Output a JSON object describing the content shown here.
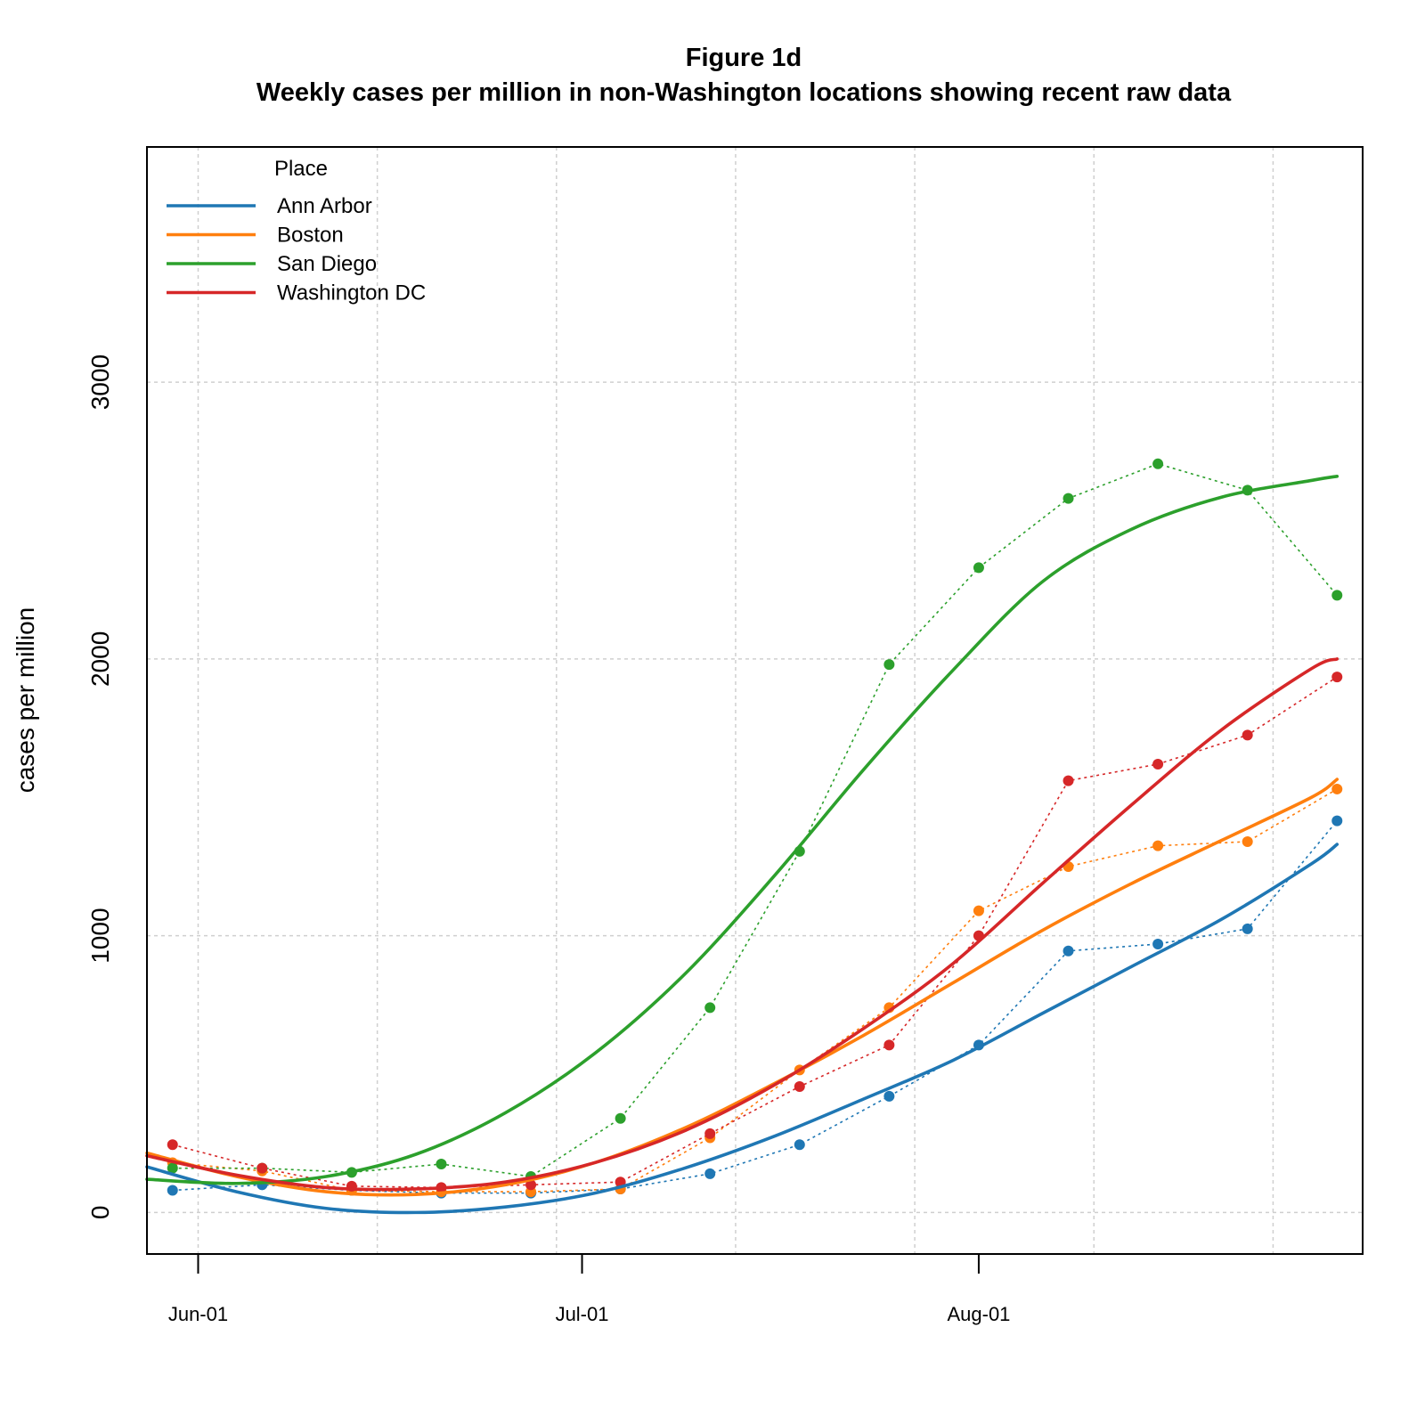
{
  "chart_data": {
    "type": "line",
    "title": "Figure 1d",
    "subtitle": "Weekly cases per million in non-Washington locations showing recent raw data",
    "xlabel": "",
    "ylabel": "cases per million",
    "x_type": "date",
    "xlim": [
      "2020-05-28",
      "2020-08-31"
    ],
    "ylim": [
      -150,
      3850
    ],
    "x_ticks": [
      {
        "date": "2020-06-01",
        "label": "Jun-01"
      },
      {
        "date": "2020-07-01",
        "label": "Jul-01"
      },
      {
        "date": "2020-08-01",
        "label": "Aug-01"
      }
    ],
    "x_grid": [
      "2020-06-01",
      "2020-06-15",
      "2020-06-29",
      "2020-07-13",
      "2020-07-27",
      "2020-08-10",
      "2020-08-24"
    ],
    "y_ticks": [
      0,
      1000,
      2000,
      3000
    ],
    "grid": true,
    "legend": {
      "title": "Place",
      "position": "top-left"
    },
    "raw_x": [
      "2020-05-30",
      "2020-06-06",
      "2020-06-13",
      "2020-06-20",
      "2020-06-27",
      "2020-07-04",
      "2020-07-11",
      "2020-07-18",
      "2020-07-25",
      "2020-08-01",
      "2020-08-08",
      "2020-08-15",
      "2020-08-22",
      "2020-08-29"
    ],
    "smooth_x": [
      "2020-05-28",
      "2020-06-04",
      "2020-06-11",
      "2020-06-18",
      "2020-06-25",
      "2020-07-02",
      "2020-07-09",
      "2020-07-16",
      "2020-07-23",
      "2020-07-30",
      "2020-08-06",
      "2020-08-13",
      "2020-08-20",
      "2020-08-27",
      "2020-08-29"
    ],
    "series": [
      {
        "name": "Ann Arbor",
        "color": "#1f77b4",
        "raw": [
          80,
          100,
          80,
          70,
          70,
          85,
          140,
          245,
          420,
          605,
          945,
          970,
          1025,
          1415
        ],
        "smooth": [
          165,
          75,
          15,
          0,
          20,
          70,
          160,
          275,
          410,
          550,
          720,
          890,
          1060,
          1260,
          1330
        ]
      },
      {
        "name": "Boston",
        "color": "#ff7f0e",
        "raw": [
          180,
          150,
          80,
          75,
          75,
          85,
          270,
          515,
          740,
          1090,
          1250,
          1325,
          1340,
          1530
        ],
        "smooth": [
          215,
          130,
          75,
          65,
          100,
          180,
          305,
          465,
          640,
          830,
          1020,
          1190,
          1345,
          1500,
          1565
        ]
      },
      {
        "name": "San Diego",
        "color": "#2ca02c",
        "raw": [
          160,
          160,
          145,
          175,
          130,
          340,
          740,
          1305,
          1980,
          2330,
          2580,
          2705,
          2610,
          2230
        ],
        "smooth": [
          120,
          105,
          130,
          210,
          360,
          575,
          860,
          1215,
          1600,
          1960,
          2280,
          2470,
          2585,
          2645,
          2660
        ]
      },
      {
        "name": "Washington DC",
        "color": "#d62728",
        "raw": [
          245,
          160,
          95,
          90,
          100,
          110,
          285,
          455,
          605,
          1000,
          1560,
          1620,
          1725,
          1935
        ],
        "smooth": [
          205,
          135,
          90,
          85,
          110,
          180,
          295,
          460,
          665,
          900,
          1190,
          1475,
          1745,
          1965,
          2000
        ]
      }
    ]
  }
}
